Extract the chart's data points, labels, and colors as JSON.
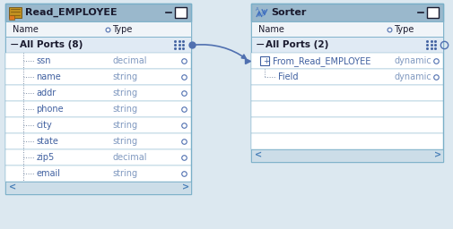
{
  "bg_color": "#dce8f0",
  "panel_bg": "#ffffff",
  "header_bg": "#9ab8cc",
  "subheader_bg": "#f0f4f8",
  "group_row_bg": "#e0eaf4",
  "scrollbar_bg": "#ccdde8",
  "scrollbar_thumb": "#4a80b8",
  "border_color": "#7aafc8",
  "text_dark": "#1a1a2e",
  "text_blue": "#4060a0",
  "text_type": "#8099c0",
  "port_circle_fill": "none",
  "port_circle_edge": "#5070b0",
  "port_filled": "#5070b0",
  "arrow_color": "#5070b0",
  "icon_read_bg": "#c09020",
  "icon_read_line": "#705010",
  "icon_sort_color": "#4070c0",
  "tree_line_color": "#8090a8",
  "fig_w": 5.05,
  "fig_h": 2.56,
  "left_panel": {
    "title": "Read_EMPLOYEE",
    "group_label": "All Ports (8)",
    "rows": [
      [
        "ssn",
        "decimal"
      ],
      [
        "name",
        "string"
      ],
      [
        "addr",
        "string"
      ],
      [
        "phone",
        "string"
      ],
      [
        "city",
        "string"
      ],
      [
        "state",
        "string"
      ],
      [
        "zip5",
        "decimal"
      ],
      [
        "email",
        "string"
      ]
    ]
  },
  "right_panel": {
    "title": "Sorter",
    "group_label": "All Ports (2)",
    "rows": [
      [
        "+",
        "From_Read_EMPLOYEE",
        "dynamic"
      ],
      [
        " ",
        "Field",
        "dynamic"
      ]
    ]
  }
}
